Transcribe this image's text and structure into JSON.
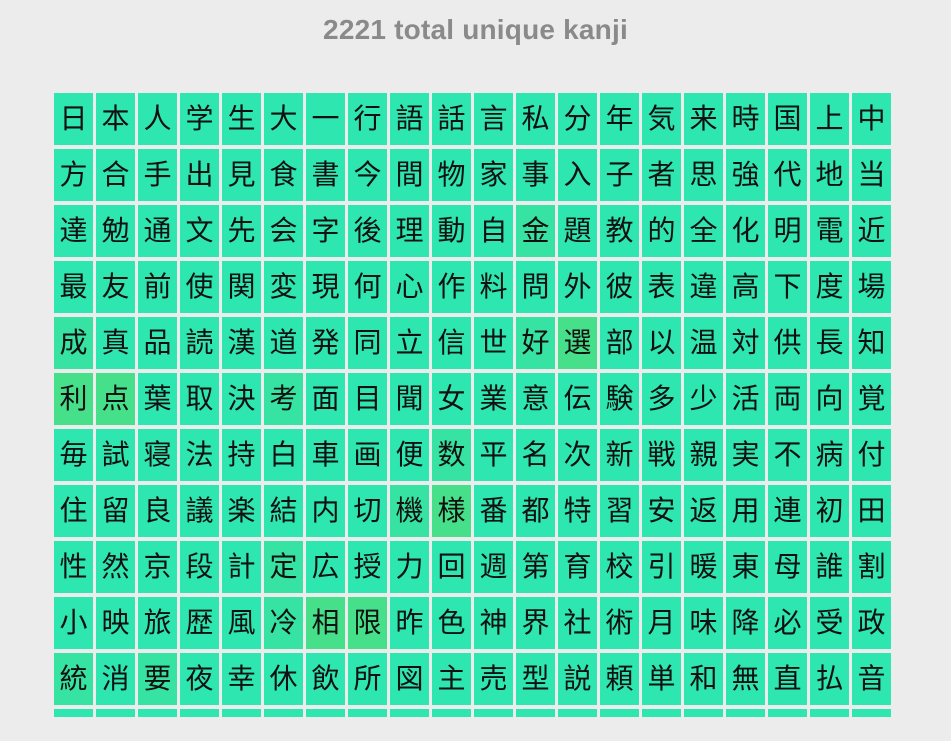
{
  "header": {
    "title": "2221 total unique kanji"
  },
  "colors": {
    "tile_base": "#2ee6b0",
    "tile_mid": "#36e3a2",
    "tile_warm": "#46e08a",
    "title_text": "#8a8a8a",
    "background": "#ececec"
  },
  "kanji_rows": [
    [
      "日",
      "本",
      "人",
      "学",
      "生",
      "大",
      "一",
      "行",
      "語",
      "話",
      "言",
      "私",
      "分",
      "年",
      "気",
      "来",
      "時",
      "国",
      "上",
      "中"
    ],
    [
      "方",
      "合",
      "手",
      "出",
      "見",
      "食",
      "書",
      "今",
      "間",
      "物",
      "家",
      "事",
      "入",
      "子",
      "者",
      "思",
      "強",
      "代",
      "地",
      "当"
    ],
    [
      "達",
      "勉",
      "通",
      "文",
      "先",
      "会",
      "字",
      "後",
      "理",
      "動",
      "自",
      "金",
      "題",
      "教",
      "的",
      "全",
      "化",
      "明",
      "電",
      "近"
    ],
    [
      "最",
      "友",
      "前",
      "使",
      "関",
      "変",
      "現",
      "何",
      "心",
      "作",
      "料",
      "問",
      "外",
      "彼",
      "表",
      "違",
      "高",
      "下",
      "度",
      "場"
    ],
    [
      "成",
      "真",
      "品",
      "読",
      "漢",
      "道",
      "発",
      "同",
      "立",
      "信",
      "世",
      "好",
      "選",
      "部",
      "以",
      "温",
      "対",
      "供",
      "長",
      "知"
    ],
    [
      "利",
      "点",
      "葉",
      "取",
      "決",
      "考",
      "面",
      "目",
      "聞",
      "女",
      "業",
      "意",
      "伝",
      "験",
      "多",
      "少",
      "活",
      "両",
      "向",
      "覚"
    ],
    [
      "毎",
      "試",
      "寝",
      "法",
      "持",
      "白",
      "車",
      "画",
      "便",
      "数",
      "平",
      "名",
      "次",
      "新",
      "戦",
      "親",
      "実",
      "不",
      "病",
      "付"
    ],
    [
      "住",
      "留",
      "良",
      "議",
      "楽",
      "結",
      "内",
      "切",
      "機",
      "様",
      "番",
      "都",
      "特",
      "習",
      "安",
      "返",
      "用",
      "連",
      "初",
      "田"
    ],
    [
      "性",
      "然",
      "京",
      "段",
      "計",
      "定",
      "広",
      "授",
      "力",
      "回",
      "週",
      "第",
      "育",
      "校",
      "引",
      "暖",
      "東",
      "母",
      "誰",
      "割"
    ],
    [
      "小",
      "映",
      "旅",
      "歴",
      "風",
      "冷",
      "相",
      "限",
      "昨",
      "色",
      "神",
      "界",
      "社",
      "術",
      "月",
      "味",
      "降",
      "必",
      "受",
      "政"
    ],
    [
      "統",
      "消",
      "要",
      "夜",
      "幸",
      "休",
      "飲",
      "所",
      "図",
      "主",
      "売",
      "型",
      "説",
      "頼",
      "単",
      "和",
      "無",
      "直",
      "払",
      "音"
    ]
  ],
  "tile_shades": [
    "bbbbbbbbbbbbbbbbbbbb",
    "bbbbbbbbbbbbbbbbbbbb",
    "bbbbbbbbbbbmbbbbbbbb",
    "bbbbbbbbbbbbbbbbbbbb",
    "mbbbbbbbbbbmwbbbbbbb",
    "wwbbbmbbbbbbbbbbbbbb",
    "bbbbbbbbbmbbbbbbbbbb",
    "bbbbbbbbmwbbbbbbbbbb",
    "bbbbbmbbbbbbbbbbbbbb",
    "bbbbbmwwbbbbbbbbbbbb",
    "mbmbbbbbbbbbbbbbbbbb"
  ]
}
